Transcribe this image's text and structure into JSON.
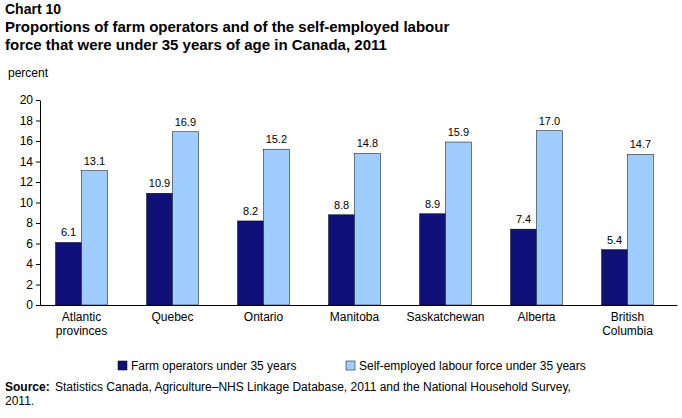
{
  "chart_data": {
    "type": "bar",
    "title": [
      "Chart 10",
      "Proportions of farm operators and of the self-employed labour",
      "force that were under 35 years of age in Canada, 2011"
    ],
    "y_label": "percent",
    "categories": [
      "Atlantic provinces",
      "Quebec",
      "Ontario",
      "Manitoba",
      "Saskatchewan",
      "Alberta",
      "British Columbia"
    ],
    "series": [
      {
        "name": "Farm operators under 35 years",
        "color": "#10107a",
        "values": [
          6.1,
          10.9,
          8.2,
          8.8,
          8.9,
          7.4,
          5.4
        ]
      },
      {
        "name": "Self-employed labour force under 35 years",
        "color": "#9fcdff",
        "values": [
          13.1,
          16.9,
          15.2,
          14.8,
          15.9,
          17.0,
          14.7
        ]
      }
    ],
    "value_labels": [
      [
        "6.1",
        "10.9",
        "8.2",
        "8.8",
        "8.9",
        "7.4",
        "5.4"
      ],
      [
        "13.1",
        "16.9",
        "15.2",
        "14.8",
        "15.9",
        "17.0",
        "14.7"
      ]
    ],
    "ylim": [
      0,
      20
    ],
    "yticks": [
      0,
      2,
      4,
      6,
      8,
      10,
      12,
      14,
      16,
      18,
      20
    ],
    "grid": false,
    "data_labels": true,
    "legend": "bottom",
    "source_label": "Source:",
    "source": [
      "Statistics Canada, Agriculture–NHS Linkage Database, 2011 and the National Household Survey,",
      "2011."
    ]
  }
}
